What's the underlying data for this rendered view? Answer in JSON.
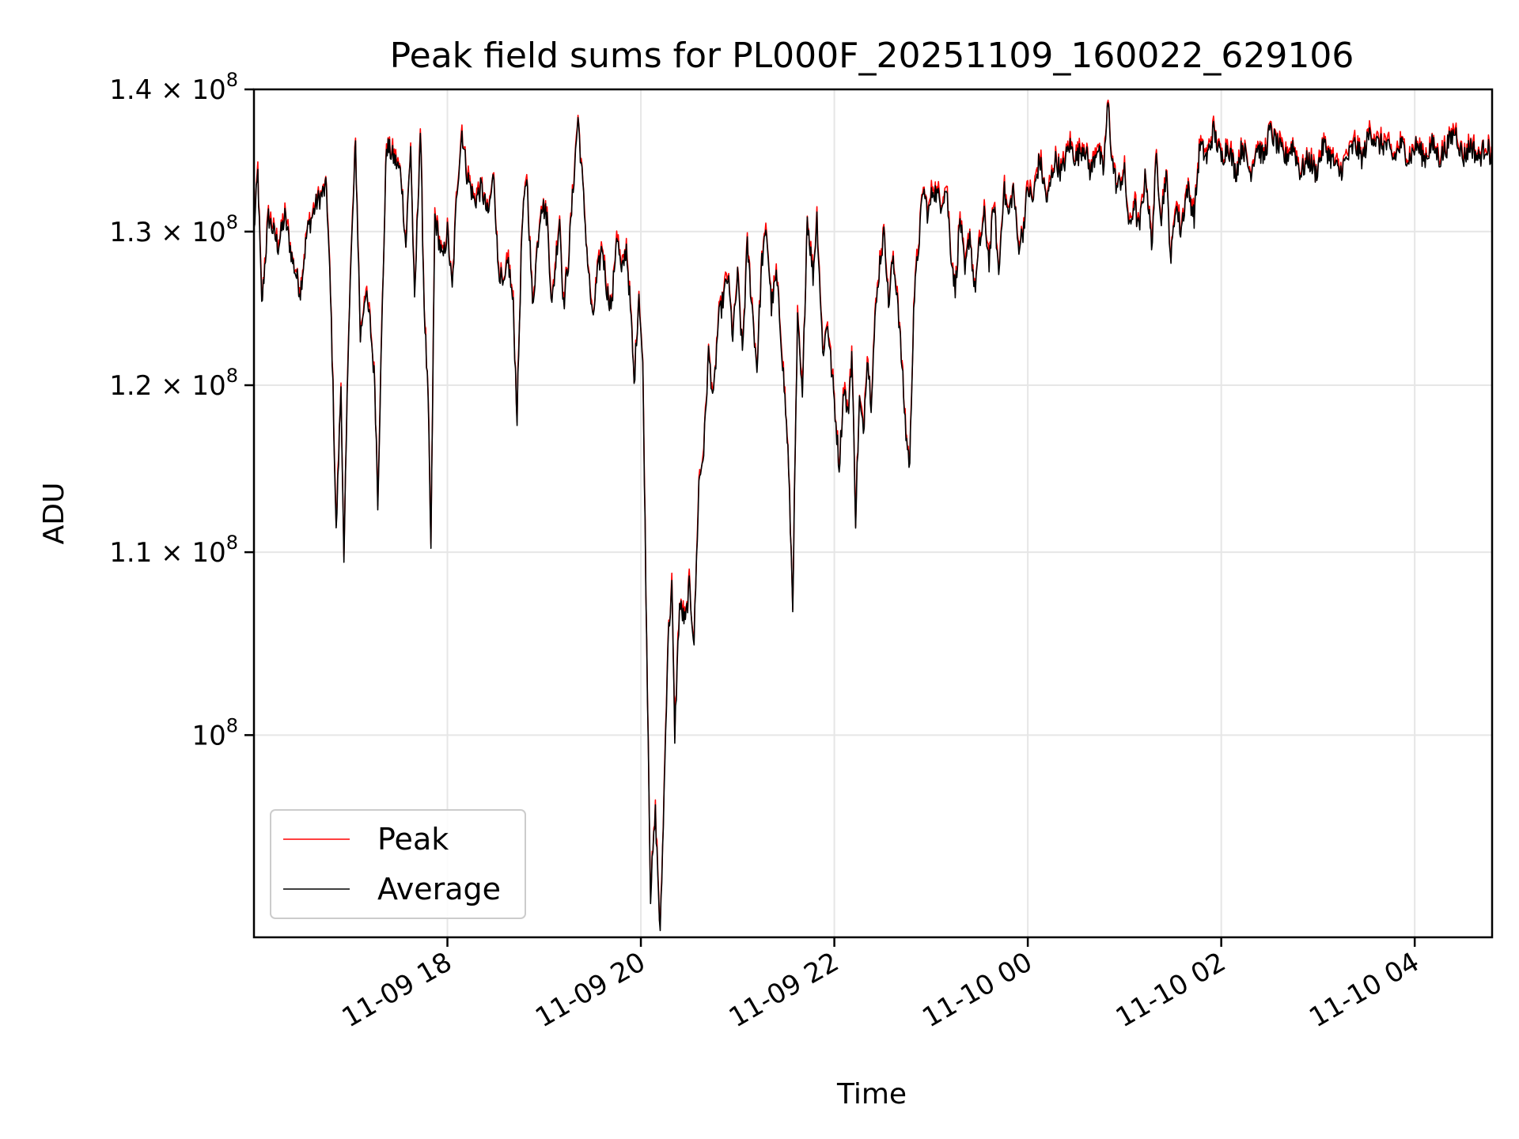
{
  "chart_data": {
    "type": "line",
    "title": "Peak field sums for PL000F_20251109_160022_629106",
    "xlabel": "Time",
    "ylabel": "ADU",
    "yscale": "log",
    "ylim": [
      90000000,
      140000000
    ],
    "xlim_hours": [
      16.0,
      28.8
    ],
    "x_unit": "hours since 2025-11-09 00:00",
    "grid": true,
    "legend_position": "lower-left",
    "x_ticks": [
      {
        "hours": 18,
        "label": "11-09 18"
      },
      {
        "hours": 20,
        "label": "11-09 20"
      },
      {
        "hours": 22,
        "label": "11-09 22"
      },
      {
        "hours": 24,
        "label": "11-10 00"
      },
      {
        "hours": 26,
        "label": "11-10 02"
      },
      {
        "hours": 28,
        "label": "11-10 04"
      }
    ],
    "y_ticks": [
      {
        "value": 100000000,
        "mantissa": "",
        "exponent": "8",
        "base": "10"
      },
      {
        "value": 110000000,
        "mantissa": "1.1",
        "exponent": "8",
        "base": "10"
      },
      {
        "value": 120000000,
        "mantissa": "1.2",
        "exponent": "8",
        "base": "10"
      },
      {
        "value": 130000000,
        "mantissa": "1.3",
        "exponent": "8",
        "base": "10"
      },
      {
        "value": 140000000,
        "mantissa": "1.4",
        "exponent": "8",
        "base": "10"
      }
    ],
    "anchors": [
      [
        16.0,
        130000000.0
      ],
      [
        16.04,
        134000000.0
      ],
      [
        16.08,
        125000000.0
      ],
      [
        16.15,
        131000000.0
      ],
      [
        16.25,
        129000000.0
      ],
      [
        16.32,
        131000000.0
      ],
      [
        16.4,
        128000000.0
      ],
      [
        16.48,
        126000000.0
      ],
      [
        16.55,
        130000000.0
      ],
      [
        16.65,
        132000000.0
      ],
      [
        16.75,
        133000000.0
      ],
      [
        16.8,
        124000000.0
      ],
      [
        16.85,
        111000000.0
      ],
      [
        16.9,
        120000000.0
      ],
      [
        16.93,
        109000000.0
      ],
      [
        16.98,
        124000000.0
      ],
      [
        17.05,
        136000000.0
      ],
      [
        17.1,
        123000000.0
      ],
      [
        17.15,
        126000000.0
      ],
      [
        17.2,
        124000000.0
      ],
      [
        17.25,
        120000000.0
      ],
      [
        17.28,
        113000000.0
      ],
      [
        17.32,
        123000000.0
      ],
      [
        17.37,
        136000000.0
      ],
      [
        17.45,
        135000000.0
      ],
      [
        17.52,
        134000000.0
      ],
      [
        17.57,
        129000000.0
      ],
      [
        17.62,
        136000000.0
      ],
      [
        17.66,
        125000000.0
      ],
      [
        17.72,
        137000000.0
      ],
      [
        17.76,
        125000000.0
      ],
      [
        17.8,
        119000000.0
      ],
      [
        17.83,
        110000000.0
      ],
      [
        17.87,
        131000000.0
      ],
      [
        17.95,
        128000000.0
      ],
      [
        18.0,
        130000000.0
      ],
      [
        18.05,
        126000000.0
      ],
      [
        18.1,
        133000000.0
      ],
      [
        18.15,
        137000000.0
      ],
      [
        18.2,
        134000000.0
      ],
      [
        18.28,
        132000000.0
      ],
      [
        18.35,
        133000000.0
      ],
      [
        18.42,
        131000000.0
      ],
      [
        18.48,
        134000000.0
      ],
      [
        18.52,
        128000000.0
      ],
      [
        18.58,
        126000000.0
      ],
      [
        18.63,
        128000000.0
      ],
      [
        18.68,
        125000000.0
      ],
      [
        18.72,
        118000000.0
      ],
      [
        18.77,
        130000000.0
      ],
      [
        18.82,
        134000000.0
      ],
      [
        18.88,
        125000000.0
      ],
      [
        18.93,
        129000000.0
      ],
      [
        18.97,
        132000000.0
      ],
      [
        19.03,
        131000000.0
      ],
      [
        19.08,
        125000000.0
      ],
      [
        19.12,
        128000000.0
      ],
      [
        19.16,
        131000000.0
      ],
      [
        19.2,
        125000000.0
      ],
      [
        19.25,
        128000000.0
      ],
      [
        19.3,
        133000000.0
      ],
      [
        19.35,
        138000000.0
      ],
      [
        19.4,
        133000000.0
      ],
      [
        19.45,
        128000000.0
      ],
      [
        19.5,
        124000000.0
      ],
      [
        19.55,
        127000000.0
      ],
      [
        19.6,
        129000000.0
      ],
      [
        19.65,
        126000000.0
      ],
      [
        19.7,
        125000000.0
      ],
      [
        19.75,
        130000000.0
      ],
      [
        19.8,
        127000000.0
      ],
      [
        19.85,
        129000000.0
      ],
      [
        19.9,
        124000000.0
      ],
      [
        19.93,
        120000000.0
      ],
      [
        19.98,
        126000000.0
      ],
      [
        20.02,
        121000000.0
      ],
      [
        20.06,
        105000000.0
      ],
      [
        20.1,
        92000000.0
      ],
      [
        20.15,
        96000000.0
      ],
      [
        20.2,
        90000000.0
      ],
      [
        20.24,
        97000000.0
      ],
      [
        20.28,
        105000000.0
      ],
      [
        20.32,
        108000000.0
      ],
      [
        20.35,
        100000000.0
      ],
      [
        20.4,
        107000000.0
      ],
      [
        20.46,
        106000000.0
      ],
      [
        20.5,
        108000000.0
      ],
      [
        20.55,
        105000000.0
      ],
      [
        20.6,
        114000000.0
      ],
      [
        20.65,
        116000000.0
      ],
      [
        20.7,
        122000000.0
      ],
      [
        20.75,
        119000000.0
      ],
      [
        20.8,
        124000000.0
      ],
      [
        20.9,
        127000000.0
      ],
      [
        20.95,
        123000000.0
      ],
      [
        21.0,
        127000000.0
      ],
      [
        21.05,
        122000000.0
      ],
      [
        21.1,
        129000000.0
      ],
      [
        21.15,
        125000000.0
      ],
      [
        21.2,
        121000000.0
      ],
      [
        21.25,
        128000000.0
      ],
      [
        21.3,
        130000000.0
      ],
      [
        21.35,
        125000000.0
      ],
      [
        21.4,
        127000000.0
      ],
      [
        21.45,
        123000000.0
      ],
      [
        21.52,
        116000000.0
      ],
      [
        21.57,
        107000000.0
      ],
      [
        21.62,
        124000000.0
      ],
      [
        21.67,
        119000000.0
      ],
      [
        21.72,
        131000000.0
      ],
      [
        21.78,
        127000000.0
      ],
      [
        21.82,
        131000000.0
      ],
      [
        21.88,
        122000000.0
      ],
      [
        21.93,
        124000000.0
      ],
      [
        21.97,
        121000000.0
      ],
      [
        22.0,
        119000000.0
      ],
      [
        22.05,
        115000000.0
      ],
      [
        22.1,
        120000000.0
      ],
      [
        22.14,
        118000000.0
      ],
      [
        22.18,
        122000000.0
      ],
      [
        22.22,
        112000000.0
      ],
      [
        22.26,
        119000000.0
      ],
      [
        22.3,
        117000000.0
      ],
      [
        22.34,
        122000000.0
      ],
      [
        22.38,
        119000000.0
      ],
      [
        22.42,
        124000000.0
      ],
      [
        22.47,
        128000000.0
      ],
      [
        22.52,
        130000000.0
      ],
      [
        22.56,
        125000000.0
      ],
      [
        22.6,
        128000000.0
      ],
      [
        22.65,
        126000000.0
      ],
      [
        22.7,
        121000000.0
      ],
      [
        22.74,
        117000000.0
      ],
      [
        22.78,
        115000000.0
      ],
      [
        22.82,
        125000000.0
      ],
      [
        22.87,
        129000000.0
      ],
      [
        22.92,
        133000000.0
      ],
      [
        22.97,
        131000000.0
      ],
      [
        23.02,
        133000000.0
      ],
      [
        23.1,
        132000000.0
      ],
      [
        23.16,
        133000000.0
      ],
      [
        23.2,
        129000000.0
      ],
      [
        23.25,
        126000000.0
      ],
      [
        23.3,
        131000000.0
      ],
      [
        23.35,
        127000000.0
      ],
      [
        23.4,
        130000000.0
      ],
      [
        23.45,
        126000000.0
      ],
      [
        23.5,
        129000000.0
      ],
      [
        23.55,
        131000000.0
      ],
      [
        23.6,
        128000000.0
      ],
      [
        23.65,
        132000000.0
      ],
      [
        23.7,
        127000000.0
      ],
      [
        23.75,
        133000000.0
      ],
      [
        23.8,
        131000000.0
      ],
      [
        23.85,
        133000000.0
      ],
      [
        23.9,
        129000000.0
      ],
      [
        23.95,
        130000000.0
      ],
      [
        24.0,
        133000000.0
      ],
      [
        24.05,
        132000000.0
      ],
      [
        24.12,
        135000000.0
      ],
      [
        24.2,
        132000000.0
      ],
      [
        24.28,
        135000000.0
      ],
      [
        24.35,
        134000000.0
      ],
      [
        24.43,
        136000000.0
      ],
      [
        24.5,
        135000000.0
      ],
      [
        24.58,
        136000000.0
      ],
      [
        24.65,
        134000000.0
      ],
      [
        24.72,
        136000000.0
      ],
      [
        24.78,
        134000000.0
      ],
      [
        24.83,
        139000000.0
      ],
      [
        24.87,
        135000000.0
      ],
      [
        24.92,
        133000000.0
      ],
      [
        25.0,
        134000000.0
      ],
      [
        25.05,
        130000000.0
      ],
      [
        25.1,
        132000000.0
      ],
      [
        25.15,
        130000000.0
      ],
      [
        25.22,
        134000000.0
      ],
      [
        25.28,
        129000000.0
      ],
      [
        25.33,
        135000000.0
      ],
      [
        25.38,
        131000000.0
      ],
      [
        25.43,
        134000000.0
      ],
      [
        25.48,
        128000000.0
      ],
      [
        25.53,
        132000000.0
      ],
      [
        25.58,
        130000000.0
      ],
      [
        25.65,
        133000000.0
      ],
      [
        25.72,
        131000000.0
      ],
      [
        25.78,
        136000000.0
      ],
      [
        25.85,
        135000000.0
      ],
      [
        25.92,
        137000000.0
      ],
      [
        26.0,
        135000000.0
      ],
      [
        26.07,
        136000000.0
      ],
      [
        26.15,
        134000000.0
      ],
      [
        26.22,
        136000000.0
      ],
      [
        26.3,
        134000000.0
      ],
      [
        26.37,
        136000000.0
      ],
      [
        26.44,
        135000000.0
      ],
      [
        26.5,
        137000000.0
      ],
      [
        26.58,
        136000000.0
      ],
      [
        26.66,
        135000000.0
      ],
      [
        26.74,
        136000000.0
      ],
      [
        26.82,
        134000000.0
      ],
      [
        26.9,
        135000000.0
      ],
      [
        26.98,
        134000000.0
      ],
      [
        27.06,
        136000000.0
      ],
      [
        27.14,
        135000000.0
      ],
      [
        27.22,
        134000000.0
      ],
      [
        27.3,
        135000000.0
      ],
      [
        27.38,
        136000000.0
      ],
      [
        27.46,
        135000000.0
      ],
      [
        27.54,
        137000000.0
      ],
      [
        27.62,
        136000000.0
      ],
      [
        27.7,
        136000000.0
      ],
      [
        27.78,
        135000000.0
      ],
      [
        27.86,
        136000000.0
      ],
      [
        27.94,
        135000000.0
      ],
      [
        28.02,
        136000000.0
      ],
      [
        28.1,
        135000000.0
      ],
      [
        28.18,
        136000000.0
      ],
      [
        28.26,
        135000000.0
      ],
      [
        28.34,
        136000000.0
      ],
      [
        28.42,
        137000000.0
      ],
      [
        28.5,
        135000000.0
      ],
      [
        28.58,
        136000000.0
      ],
      [
        28.66,
        135000000.0
      ],
      [
        28.74,
        136000000.0
      ],
      [
        28.8,
        135000000.0
      ]
    ],
    "series": [
      {
        "name": "Peak",
        "color": "#ff0000",
        "offset_fraction": 0.004
      },
      {
        "name": "Average",
        "color": "#000000",
        "offset_fraction": 0.0
      }
    ]
  }
}
